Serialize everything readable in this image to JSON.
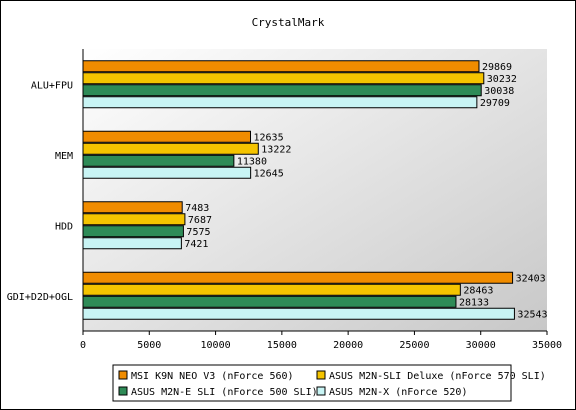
{
  "chart_data": {
    "type": "bar",
    "orientation": "horizontal",
    "title": "CrystalMark",
    "categories": [
      "ALU+FPU",
      "MEM",
      "HDD",
      "GDI+D2D+OGL"
    ],
    "series": [
      {
        "name": "MSI K9N NEO V3 (nForce 560)",
        "color": "#f08c00",
        "values": [
          29869,
          12635,
          7483,
          32403
        ]
      },
      {
        "name": "ASUS M2N-SLI Deluxe (nForce 570 SLI)",
        "color": "#f5c400",
        "values": [
          30232,
          13222,
          7687,
          28463
        ]
      },
      {
        "name": "ASUS M2N-E SLI (nForce 500 SLI)",
        "color": "#2e8b57",
        "values": [
          30038,
          11380,
          7575,
          28133
        ]
      },
      {
        "name": "ASUS M2N-X (nForce 520)",
        "color": "#c8f4f4",
        "values": [
          29709,
          12645,
          7421,
          32543
        ]
      }
    ],
    "xlim": [
      0,
      35000
    ],
    "xticks": [
      0,
      5000,
      10000,
      15000,
      20000,
      25000,
      30000,
      35000
    ],
    "grid": false,
    "legend_position": "bottom"
  }
}
